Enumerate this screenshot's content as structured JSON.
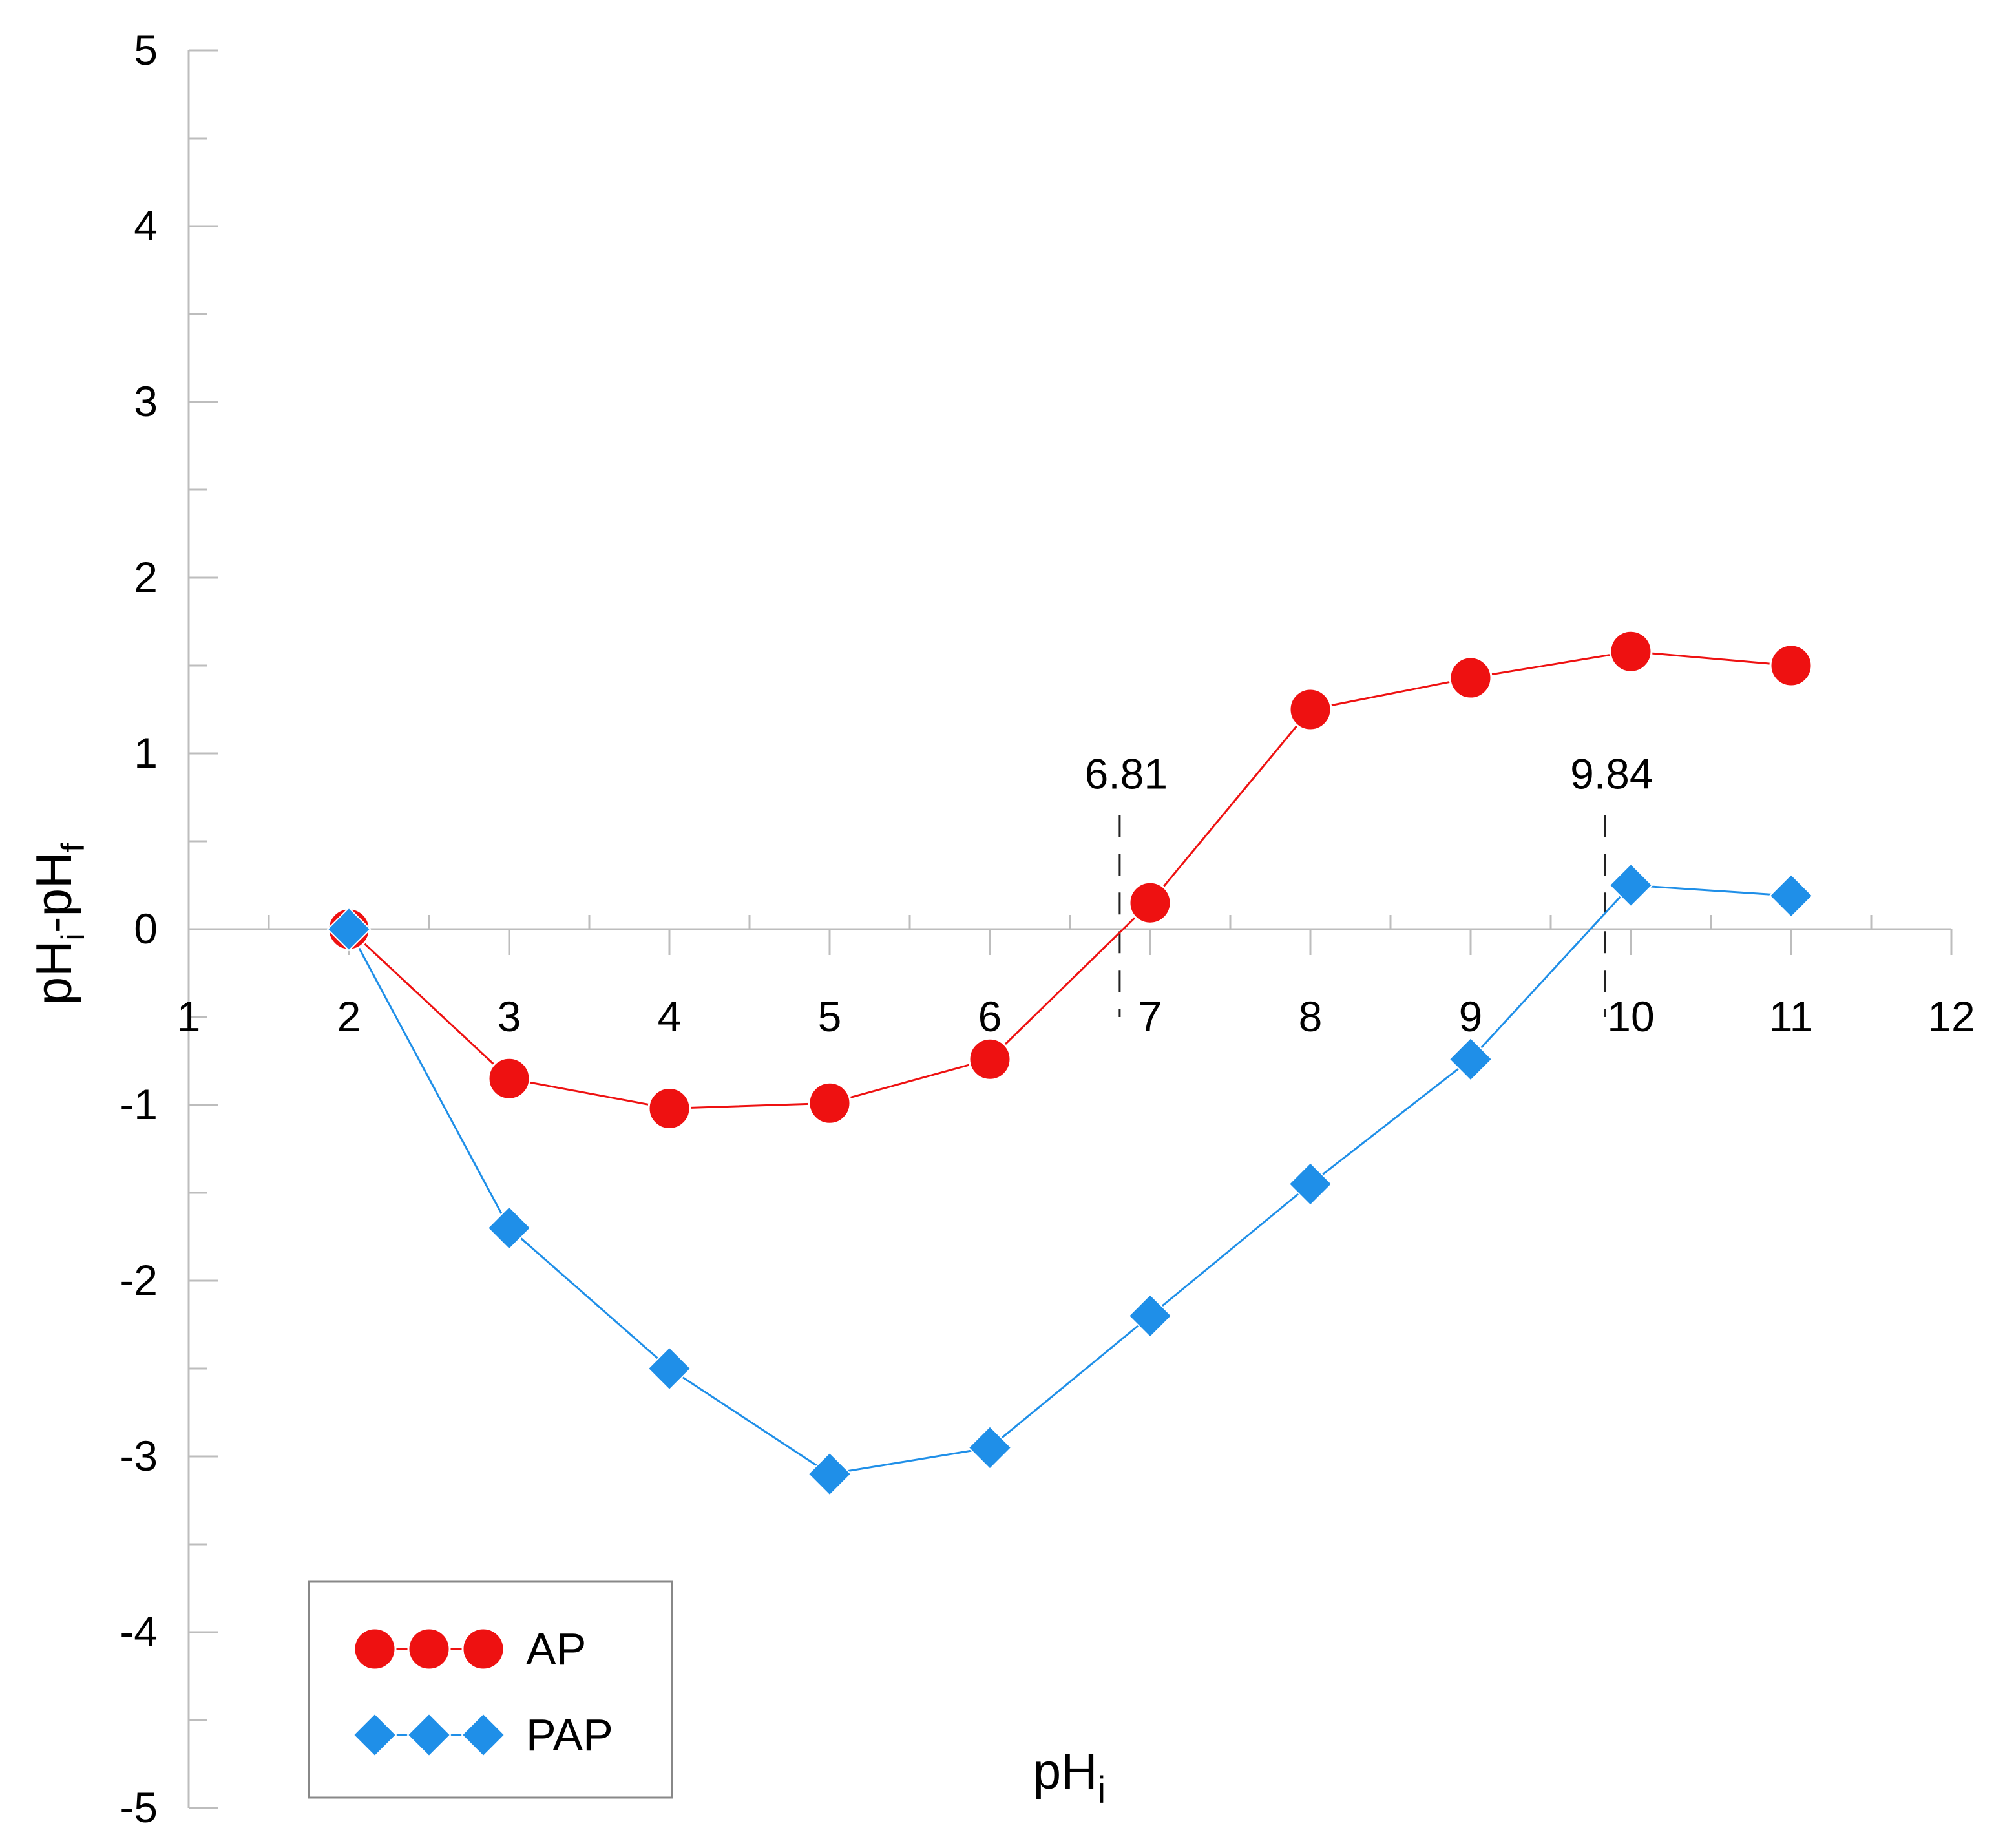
{
  "chart_data": {
    "type": "line",
    "title": "",
    "xlabel": "pHi",
    "xlabel_main": "pH",
    "xlabel_sub": "i",
    "ylabel": "pHi-pHf",
    "ylabel_parts": [
      "pH",
      "i",
      "-pH",
      "f"
    ],
    "xlim": [
      1,
      12
    ],
    "ylim": [
      -5,
      5
    ],
    "x_ticks": [
      1,
      2,
      3,
      4,
      5,
      6,
      7,
      8,
      9,
      10,
      11,
      12
    ],
    "y_ticks": [
      -5,
      -4,
      -3,
      -2,
      -1,
      0,
      1,
      2,
      3,
      4,
      5
    ],
    "x_tick_labels": [
      "1",
      "2",
      "3",
      "4",
      "5",
      "6",
      "7",
      "8",
      "9",
      "10",
      "11",
      "12"
    ],
    "y_tick_labels": [
      "-5",
      "-4",
      "-3",
      "-2",
      "-1",
      "0",
      "1",
      "2",
      "3",
      "4",
      "5"
    ],
    "grid": false,
    "legend_position": "bottom-left",
    "series": [
      {
        "name": "AP",
        "marker": "circle",
        "color": "#ee1111",
        "x": [
          2,
          3,
          4,
          5,
          6,
          7,
          8,
          9,
          10,
          11
        ],
        "y": [
          0.0,
          -0.85,
          -1.02,
          -0.99,
          -0.74,
          0.15,
          1.25,
          1.43,
          1.58,
          1.5
        ]
      },
      {
        "name": "PAP",
        "marker": "diamond",
        "color": "#1f8fe8",
        "x": [
          2,
          3,
          4,
          5,
          6,
          7,
          8,
          9,
          10,
          11
        ],
        "y": [
          0.0,
          -1.7,
          -2.5,
          -3.1,
          -2.95,
          -2.2,
          -1.45,
          -0.74,
          0.25,
          0.19
        ]
      }
    ],
    "annotations": [
      {
        "text": "6.81",
        "x": 6.81,
        "style": "dashed-vertical"
      },
      {
        "text": "9.84",
        "x": 9.84,
        "style": "dashed-vertical"
      }
    ]
  }
}
